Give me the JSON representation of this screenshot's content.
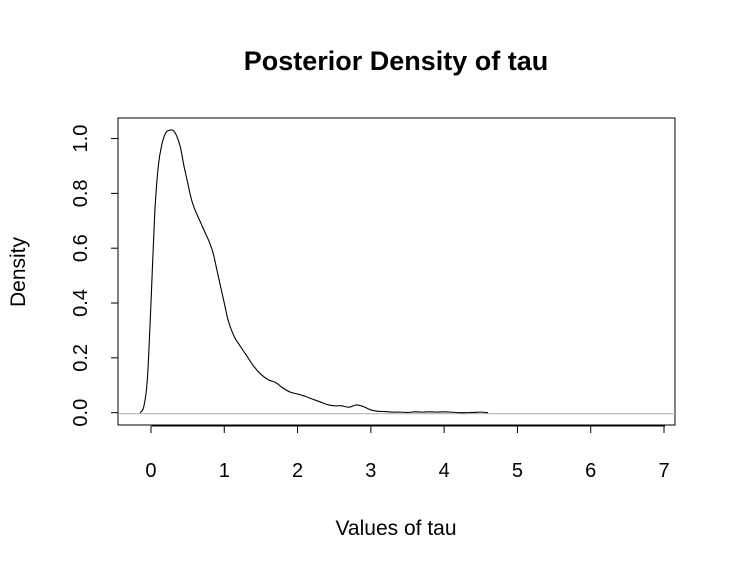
{
  "chart_data": {
    "type": "line",
    "title": "Posterior Density of tau",
    "xlabel": "Values of tau",
    "ylabel": "Density",
    "xlim": [
      -0.45,
      7.15
    ],
    "ylim": [
      -0.045,
      1.075
    ],
    "x_ticks": [
      "0",
      "1",
      "2",
      "3",
      "4",
      "5",
      "6",
      "7"
    ],
    "y_ticks": [
      "0.0",
      "0.2",
      "0.4",
      "0.6",
      "0.8",
      "1.0"
    ],
    "grid": false,
    "zero_line_color": "#bebebe",
    "line_color": "#000000",
    "series": [
      {
        "x": [
          -0.15,
          -0.1,
          -0.05,
          0.0,
          0.05,
          0.1,
          0.15,
          0.2,
          0.25,
          0.3,
          0.35,
          0.4,
          0.45,
          0.5,
          0.55,
          0.6,
          0.65,
          0.7,
          0.75,
          0.8,
          0.85,
          0.9,
          0.95,
          1.0,
          1.05,
          1.1,
          1.15,
          1.2,
          1.3,
          1.4,
          1.5,
          1.6,
          1.7,
          1.8,
          1.9,
          2.0,
          2.1,
          2.2,
          2.3,
          2.4,
          2.5,
          2.6,
          2.7,
          2.8,
          2.9,
          3.0,
          3.1,
          3.2,
          3.3,
          3.4,
          3.5,
          3.6,
          3.7,
          3.8,
          3.9,
          4.0,
          4.1,
          4.2,
          4.3,
          4.4,
          4.5,
          4.6
        ],
        "y": [
          0.0,
          0.02,
          0.12,
          0.4,
          0.72,
          0.9,
          0.98,
          1.02,
          1.03,
          1.03,
          1.01,
          0.97,
          0.9,
          0.84,
          0.78,
          0.74,
          0.71,
          0.68,
          0.65,
          0.62,
          0.58,
          0.52,
          0.46,
          0.4,
          0.34,
          0.3,
          0.27,
          0.25,
          0.21,
          0.17,
          0.14,
          0.12,
          0.11,
          0.09,
          0.075,
          0.068,
          0.06,
          0.05,
          0.04,
          0.03,
          0.025,
          0.025,
          0.02,
          0.028,
          0.022,
          0.01,
          0.005,
          0.004,
          0.002,
          0.002,
          0.001,
          0.003,
          0.002,
          0.003,
          0.002,
          0.003,
          0.002,
          0.0,
          0.0,
          0.001,
          0.002,
          0.0
        ]
      }
    ]
  }
}
